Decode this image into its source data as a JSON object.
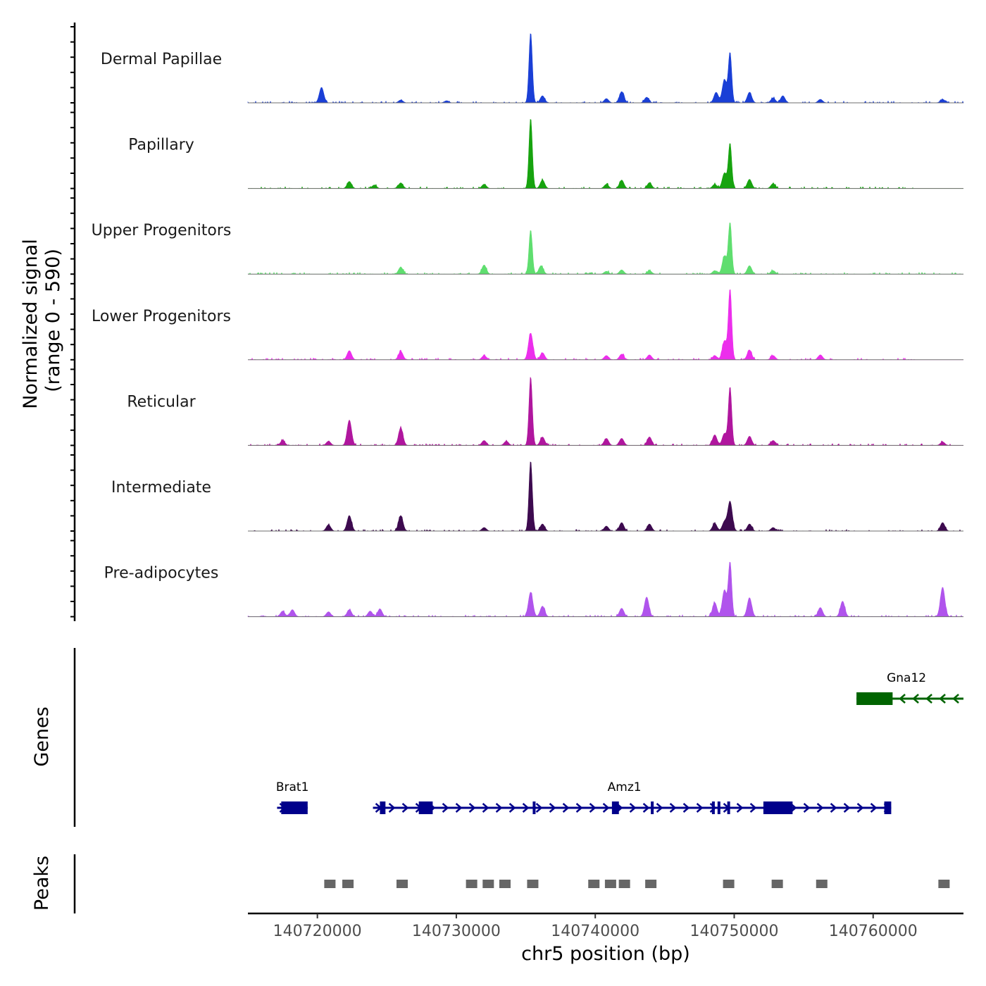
{
  "chart_data": {
    "type": "area",
    "title": "",
    "y_title_line1": "Normalized signal",
    "y_title_line2": "(range 0 - 590)",
    "xlabel": "chr5 position (bp)",
    "xlim": [
      140715000,
      140766500
    ],
    "ylim": [
      0,
      590
    ],
    "x_ticks": [
      {
        "value": 140720000,
        "label": "140720000"
      },
      {
        "value": 140730000,
        "label": "140730000"
      },
      {
        "value": 140740000,
        "label": "140740000"
      },
      {
        "value": 140750000,
        "label": "140750000"
      },
      {
        "value": 140760000,
        "label": "140760000"
      }
    ],
    "tracks": [
      {
        "name": "Dermal Papillae",
        "color": "#1a3fd6",
        "peaks": [
          [
            140720300,
            0.22
          ],
          [
            140726000,
            0.04
          ],
          [
            140729300,
            0.03
          ],
          [
            140735350,
            1.0
          ],
          [
            140736200,
            0.1
          ],
          [
            140740800,
            0.06
          ],
          [
            140741900,
            0.16
          ],
          [
            140743700,
            0.08
          ],
          [
            140748700,
            0.15
          ],
          [
            140749300,
            0.33
          ],
          [
            140749700,
            0.71
          ],
          [
            140751100,
            0.15
          ],
          [
            140752800,
            0.07
          ],
          [
            140753500,
            0.1
          ],
          [
            140756200,
            0.05
          ],
          [
            140765000,
            0.05
          ]
        ],
        "baseline_end": 140766500
      },
      {
        "name": "Papillary",
        "color": "#17a30f",
        "peaks": [
          [
            140722300,
            0.1
          ],
          [
            140724100,
            0.05
          ],
          [
            140726000,
            0.08
          ],
          [
            140732000,
            0.06
          ],
          [
            140735350,
            1.0
          ],
          [
            140736200,
            0.12
          ],
          [
            140740800,
            0.06
          ],
          [
            140741900,
            0.12
          ],
          [
            140743900,
            0.08
          ],
          [
            140748600,
            0.06
          ],
          [
            140749300,
            0.22
          ],
          [
            140749700,
            0.64
          ],
          [
            140751100,
            0.13
          ],
          [
            140752800,
            0.07
          ]
        ],
        "baseline_end": 140763000
      },
      {
        "name": "Upper Progenitors",
        "color": "#5fde6f",
        "peaks": [
          [
            140726000,
            0.1
          ],
          [
            140732000,
            0.13
          ],
          [
            140735350,
            0.63
          ],
          [
            140736100,
            0.12
          ],
          [
            140740800,
            0.04
          ],
          [
            140741900,
            0.06
          ],
          [
            140743900,
            0.05
          ],
          [
            140748600,
            0.05
          ],
          [
            140749300,
            0.26
          ],
          [
            140749700,
            0.73
          ],
          [
            140751100,
            0.12
          ],
          [
            140752800,
            0.05
          ]
        ],
        "baseline_end": 140766500
      },
      {
        "name": "Lower Progenitors",
        "color": "#ec2eec",
        "peaks": [
          [
            140722300,
            0.13
          ],
          [
            140726000,
            0.12
          ],
          [
            140732000,
            0.06
          ],
          [
            140735350,
            0.38
          ],
          [
            140736200,
            0.1
          ],
          [
            140740800,
            0.06
          ],
          [
            140741900,
            0.08
          ],
          [
            140743900,
            0.07
          ],
          [
            140748600,
            0.06
          ],
          [
            140749300,
            0.27
          ],
          [
            140749700,
            1.0
          ],
          [
            140751100,
            0.14
          ],
          [
            140752800,
            0.06
          ],
          [
            140756200,
            0.07
          ]
        ],
        "baseline_end": 140763000
      },
      {
        "name": "Reticular",
        "color": "#b0169e",
        "peaks": [
          [
            140717500,
            0.07
          ],
          [
            140720800,
            0.06
          ],
          [
            140722300,
            0.36
          ],
          [
            140726000,
            0.25
          ],
          [
            140732000,
            0.07
          ],
          [
            140733600,
            0.06
          ],
          [
            140735350,
            0.97
          ],
          [
            140736200,
            0.12
          ],
          [
            140740800,
            0.1
          ],
          [
            140741900,
            0.1
          ],
          [
            140743900,
            0.12
          ],
          [
            140748600,
            0.15
          ],
          [
            140749300,
            0.17
          ],
          [
            140749700,
            0.83
          ],
          [
            140751100,
            0.13
          ],
          [
            140752800,
            0.07
          ],
          [
            140765000,
            0.05
          ]
        ],
        "baseline_end": 140766500
      },
      {
        "name": "Intermediate",
        "color": "#3d0a4f",
        "peaks": [
          [
            140720800,
            0.09
          ],
          [
            140722300,
            0.22
          ],
          [
            140726000,
            0.22
          ],
          [
            140732000,
            0.05
          ],
          [
            140735350,
            1.0
          ],
          [
            140736200,
            0.1
          ],
          [
            140740800,
            0.07
          ],
          [
            140741900,
            0.12
          ],
          [
            140743900,
            0.1
          ],
          [
            140748600,
            0.11
          ],
          [
            140749300,
            0.13
          ],
          [
            140749700,
            0.42
          ],
          [
            140751100,
            0.1
          ],
          [
            140752800,
            0.05
          ],
          [
            140765000,
            0.12
          ]
        ],
        "baseline_end": 140766500
      },
      {
        "name": "Pre-adipocytes",
        "color": "#b054ec",
        "peaks": [
          [
            140717500,
            0.08
          ],
          [
            140718200,
            0.1
          ],
          [
            140720800,
            0.07
          ],
          [
            140722300,
            0.1
          ],
          [
            140723800,
            0.08
          ],
          [
            140724500,
            0.11
          ],
          [
            140735350,
            0.35
          ],
          [
            140736200,
            0.15
          ],
          [
            140741900,
            0.12
          ],
          [
            140743700,
            0.28
          ],
          [
            140748600,
            0.2
          ],
          [
            140749300,
            0.38
          ],
          [
            140749700,
            0.77
          ],
          [
            140751100,
            0.27
          ],
          [
            140756200,
            0.13
          ],
          [
            140757800,
            0.22
          ],
          [
            140765000,
            0.42
          ]
        ],
        "baseline_end": 140766500
      }
    ],
    "genes": [
      {
        "name": "Gna12",
        "color": "#006400",
        "strand": "-",
        "start": 140758800,
        "end": 140766500,
        "exons": [
          [
            140758800,
            140761400
          ]
        ],
        "row": 0,
        "label_x": 140762400
      },
      {
        "name": "Brat1",
        "color": "#00008b",
        "strand": "+",
        "start": 140717100,
        "end": 140719300,
        "exons": [
          [
            140717400,
            140719300
          ]
        ],
        "row": 1,
        "label_x": 140718200
      },
      {
        "name": "Amz1",
        "color": "#00008b",
        "strand": "+",
        "start": 140724000,
        "end": 140761300,
        "exons": [
          [
            140724500,
            140724900
          ],
          [
            140727300,
            140728300
          ],
          [
            140735500,
            140735700
          ],
          [
            140741200,
            140741700
          ],
          [
            140744000,
            140744200
          ],
          [
            140748400,
            140748500
          ],
          [
            140748800,
            140749000
          ],
          [
            140749500,
            140749600
          ],
          [
            140752100,
            140754200
          ],
          [
            140760800,
            140761300
          ]
        ],
        "row": 1,
        "label_x": 140742100
      }
    ],
    "peaks_track": [
      140720900,
      140722200,
      140726100,
      140731100,
      140732300,
      140733500,
      140735500,
      140739900,
      140741100,
      140742100,
      140744000,
      140749600,
      140753100,
      140756300,
      140765100
    ]
  },
  "sections": {
    "genes_label": "Genes",
    "peaks_label": "Peaks"
  }
}
